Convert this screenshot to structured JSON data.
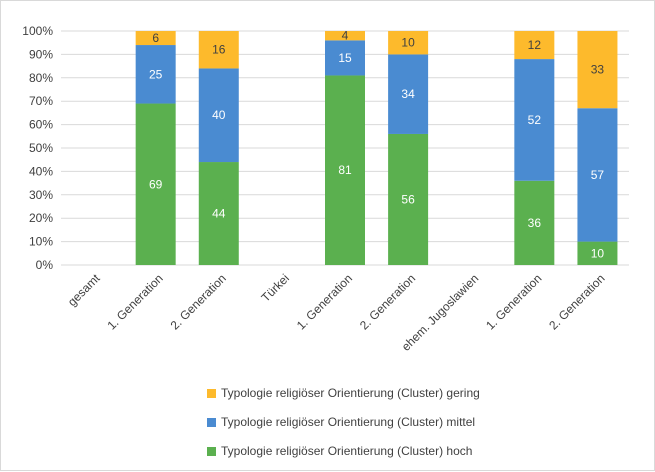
{
  "chart_data": {
    "type": "bar",
    "stacked": true,
    "categories": [
      "gesamt",
      "1. Generation",
      "2. Generation",
      "Türkei",
      "1. Generation",
      "2. Generation",
      "ehem. Jugoslawien",
      "1. Generation",
      "2. Generation"
    ],
    "series": [
      {
        "name": "Typologie religiöser Orientierung (Cluster) hoch",
        "color": "#5bb04f",
        "label_color": "#ffffff",
        "values": [
          null,
          69,
          44,
          null,
          81,
          56,
          null,
          36,
          10
        ]
      },
      {
        "name": "Typologie religiöser Orientierung (Cluster) mittel",
        "color": "#4a8bd1",
        "label_color": "#ffffff",
        "values": [
          null,
          25,
          40,
          null,
          15,
          34,
          null,
          52,
          57
        ]
      },
      {
        "name": "Typologie religiöser Orientierung (Cluster) gering",
        "color": "#fdba2c",
        "label_color": "#404040",
        "values": [
          null,
          6,
          16,
          null,
          4,
          10,
          null,
          12,
          33
        ]
      }
    ],
    "y_ticks": [
      "0%",
      "10%",
      "20%",
      "30%",
      "40%",
      "50%",
      "60%",
      "70%",
      "80%",
      "90%",
      "100%"
    ],
    "ylim": [
      0,
      100
    ],
    "grid": true,
    "legend_position": "bottom",
    "legend_order": [
      2,
      1,
      0
    ]
  }
}
